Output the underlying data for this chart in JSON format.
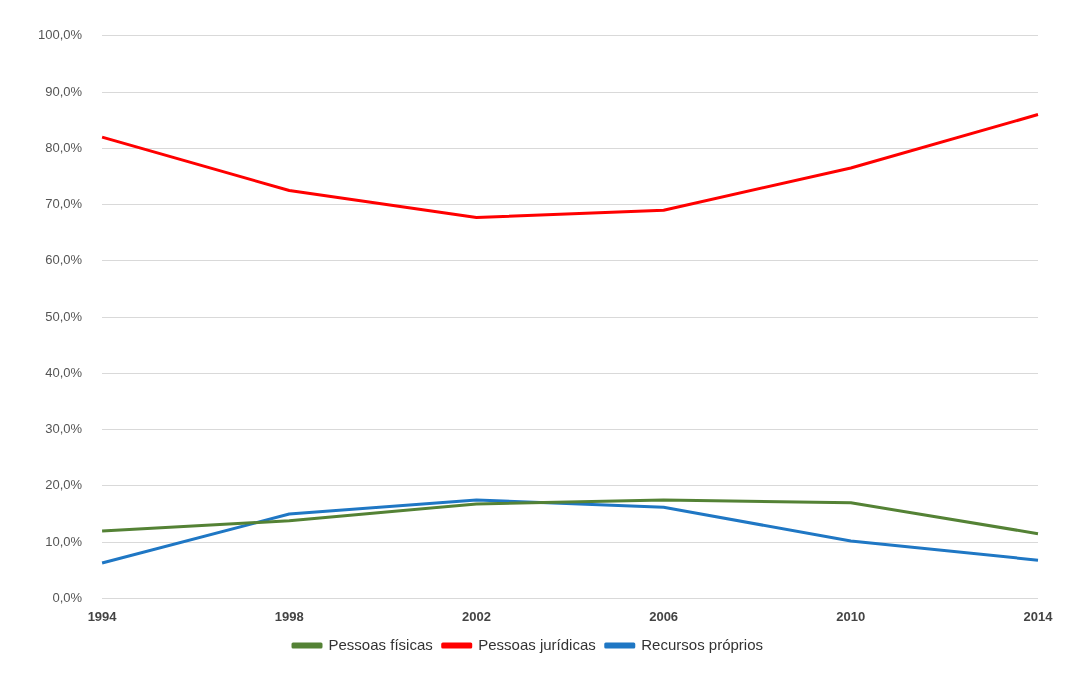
{
  "chart_data": {
    "type": "line",
    "categories": [
      "1994",
      "1998",
      "2002",
      "2006",
      "2010",
      "2014"
    ],
    "series": [
      {
        "name": "Pessoas físicas",
        "color": "#548235",
        "values": [
          12,
          13.8,
          16.8,
          17.5,
          17,
          11.5
        ]
      },
      {
        "name": "Pessoas jurídicas",
        "color": "#ff0000",
        "values": [
          82,
          72.5,
          67.7,
          69,
          76.5,
          86
        ]
      },
      {
        "name": "Recursos próprios",
        "color": "#1f77c4",
        "values": [
          6.3,
          15,
          17.5,
          16.2,
          10.2,
          6.8
        ]
      }
    ],
    "ylim": [
      0,
      100
    ],
    "yticks": [
      {
        "value": 0,
        "label": "0,0%"
      },
      {
        "value": 10,
        "label": "10,0%"
      },
      {
        "value": 20,
        "label": "20,0%"
      },
      {
        "value": 30,
        "label": "30,0%"
      },
      {
        "value": 40,
        "label": "40,0%"
      },
      {
        "value": 50,
        "label": "50,0%"
      },
      {
        "value": 60,
        "label": "60,0%"
      },
      {
        "value": 70,
        "label": "70,0%"
      },
      {
        "value": 80,
        "label": "80,0%"
      },
      {
        "value": 90,
        "label": "90,0%"
      },
      {
        "value": 100,
        "label": "100,0%"
      }
    ],
    "grid": "y",
    "legend": "bottom",
    "marker": "none",
    "line_style": "solid"
  }
}
